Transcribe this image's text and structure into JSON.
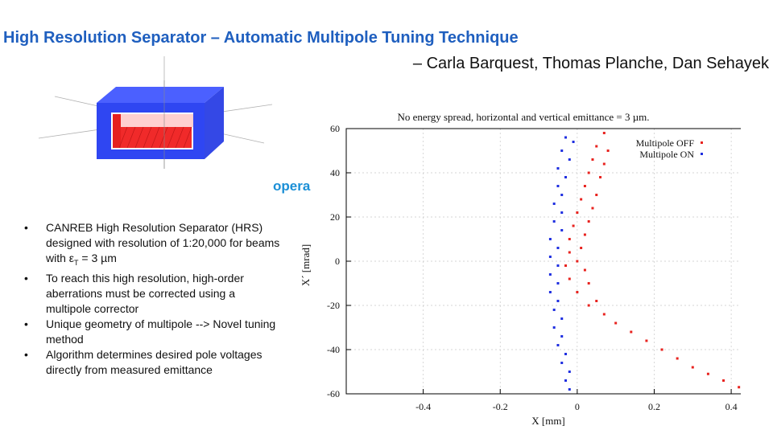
{
  "slide": {
    "title": "High Resolution Separator – Automatic Multipole Tuning Technique",
    "authors": "– Carla Barquest, Thomas Planche, Dan Sehayek",
    "logo_text": "opera",
    "version_text": "",
    "bullets": [
      "CANREB High Resolution Separator (HRS) designed with resolution of 1:20,000 for beams with ε",
      "To reach this high resolution, high-order aberrations must be corrected using a multipole corrector",
      "Unique geometry of multipole --> Novel tuning method",
      "Algorithm determines desired pole voltages directly from measured emittance"
    ],
    "bullet1_subscript": "T",
    "bullet1_tail": " = 3 µm",
    "bullet_marker": "•",
    "colors": {
      "title": "#1f5fbf",
      "multipole_off": "#e8231f",
      "multipole_on": "#1f2fe0",
      "model_blue": "#2f46f2",
      "model_red": "#f02a2a"
    }
  },
  "chart_data": {
    "type": "scatter",
    "title": "No energy spread, horizontal and vertical emittance = 3 µm.",
    "xlabel": "X [mm]",
    "ylabel": "X´ [mrad]",
    "xlim": [
      -0.6,
      0.45
    ],
    "ylim": [
      -60,
      60
    ],
    "x_ticks": [
      -0.4,
      -0.2,
      0,
      0.2,
      0.4
    ],
    "x_tick_labels": [
      "-0.4",
      "-0.2",
      "0",
      "0.2",
      "0.4"
    ],
    "y_ticks": [
      -60,
      -40,
      -20,
      0,
      20,
      40,
      60
    ],
    "y_tick_labels": [
      "-60",
      "-40",
      "-20",
      "0",
      "20",
      "40",
      "60"
    ],
    "legend_position": "top-right",
    "series": [
      {
        "name": "Multipole OFF",
        "color": "#e8231f",
        "points": [
          [
            0.07,
            58
          ],
          [
            0.05,
            52
          ],
          [
            0.08,
            50
          ],
          [
            0.04,
            46
          ],
          [
            0.07,
            44
          ],
          [
            0.03,
            40
          ],
          [
            0.06,
            38
          ],
          [
            0.02,
            34
          ],
          [
            0.05,
            30
          ],
          [
            0.01,
            28
          ],
          [
            0.04,
            24
          ],
          [
            0.0,
            22
          ],
          [
            0.03,
            18
          ],
          [
            -0.01,
            16
          ],
          [
            0.02,
            12
          ],
          [
            -0.02,
            10
          ],
          [
            0.01,
            6
          ],
          [
            -0.02,
            4
          ],
          [
            0.0,
            0
          ],
          [
            -0.03,
            -2
          ],
          [
            0.02,
            -4
          ],
          [
            -0.02,
            -8
          ],
          [
            0.03,
            -10
          ],
          [
            0.0,
            -14
          ],
          [
            0.05,
            -18
          ],
          [
            0.03,
            -20
          ],
          [
            0.07,
            -24
          ],
          [
            0.1,
            -28
          ],
          [
            0.14,
            -32
          ],
          [
            0.18,
            -36
          ],
          [
            0.22,
            -40
          ],
          [
            0.26,
            -44
          ],
          [
            0.3,
            -48
          ],
          [
            0.34,
            -51
          ],
          [
            0.38,
            -54
          ],
          [
            0.42,
            -57
          ],
          [
            0.45,
            -59
          ]
        ]
      },
      {
        "name": "Multipole ON",
        "color": "#1f2fe0",
        "points": [
          [
            -0.03,
            56
          ],
          [
            -0.01,
            54
          ],
          [
            -0.04,
            50
          ],
          [
            -0.02,
            46
          ],
          [
            -0.05,
            42
          ],
          [
            -0.03,
            38
          ],
          [
            -0.05,
            34
          ],
          [
            -0.04,
            30
          ],
          [
            -0.06,
            26
          ],
          [
            -0.04,
            22
          ],
          [
            -0.06,
            18
          ],
          [
            -0.04,
            14
          ],
          [
            -0.07,
            10
          ],
          [
            -0.05,
            6
          ],
          [
            -0.07,
            2
          ],
          [
            -0.05,
            -2
          ],
          [
            -0.07,
            -6
          ],
          [
            -0.05,
            -10
          ],
          [
            -0.07,
            -14
          ],
          [
            -0.05,
            -18
          ],
          [
            -0.06,
            -22
          ],
          [
            -0.04,
            -26
          ],
          [
            -0.06,
            -30
          ],
          [
            -0.04,
            -34
          ],
          [
            -0.05,
            -38
          ],
          [
            -0.03,
            -42
          ],
          [
            -0.04,
            -46
          ],
          [
            -0.02,
            -50
          ],
          [
            -0.03,
            -54
          ],
          [
            -0.02,
            -58
          ]
        ]
      }
    ]
  }
}
